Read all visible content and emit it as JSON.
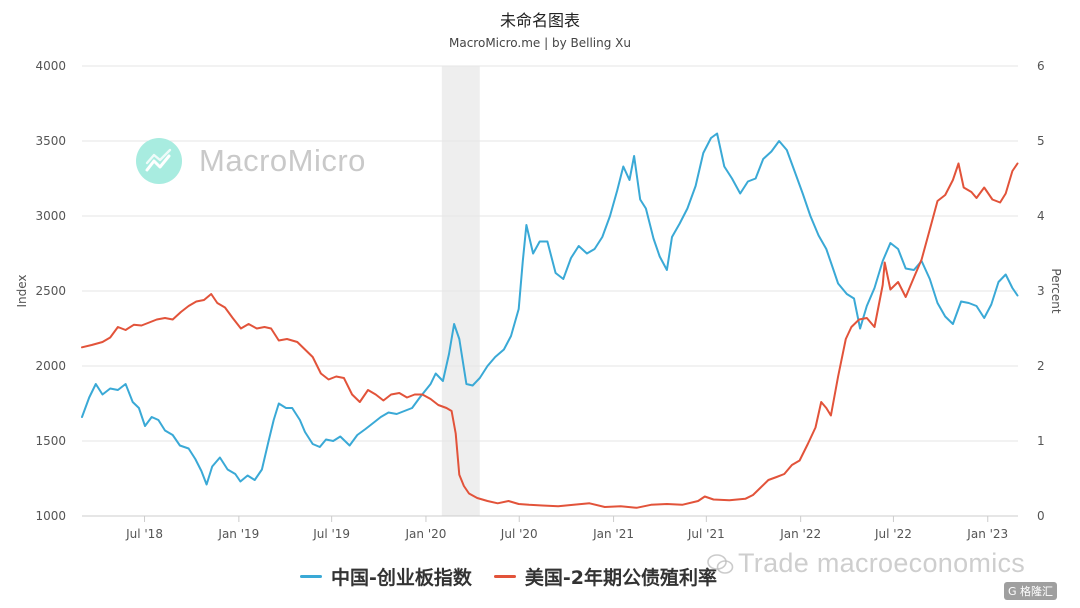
{
  "header": {
    "title": "未命名图表",
    "subtitle": "MacroMicro.me | by Belling Xu"
  },
  "watermark": {
    "text": "MacroMicro",
    "logo_color": "#a8ece0"
  },
  "overlay_watermark": {
    "text": "Trade macroeconomics"
  },
  "brand_badge": {
    "text": "G 格隆汇"
  },
  "legend": [
    {
      "label": "中国-创业板指数",
      "color": "#3aa9d6"
    },
    {
      "label": "美国-2年期公债殖利率",
      "color": "#e2533a"
    }
  ],
  "chart_data": {
    "type": "line",
    "title": "未命名图表",
    "subtitle": "MacroMicro.me | by Belling Xu",
    "ylabel": "Index",
    "y2label": "Percent",
    "ylim": [
      1000,
      4000
    ],
    "y2lim": [
      0,
      6
    ],
    "yticks": [
      "4000",
      "3500",
      "3000",
      "2500",
      "2000",
      "1500",
      "1000"
    ],
    "y2ticks": [
      "6",
      "5",
      "4",
      "3",
      "2",
      "1",
      "0"
    ],
    "xlim": [
      "2018-03-01",
      "2023-03-01"
    ],
    "xticks": [
      {
        "label": "Jul '18",
        "date": "2018-07-01"
      },
      {
        "label": "Jan '19",
        "date": "2019-01-01"
      },
      {
        "label": "Jul '19",
        "date": "2019-07-01"
      },
      {
        "label": "Jan '20",
        "date": "2020-01-01"
      },
      {
        "label": "Jul '20",
        "date": "2020-07-01"
      },
      {
        "label": "Jan '21",
        "date": "2021-01-01"
      },
      {
        "label": "Jul '21",
        "date": "2021-07-01"
      },
      {
        "label": "Jan '22",
        "date": "2022-01-01"
      },
      {
        "label": "Jul '22",
        "date": "2022-07-01"
      },
      {
        "label": "Jan '23",
        "date": "2023-01-01"
      }
    ],
    "shaded_region": {
      "start": "2020-02-01",
      "end": "2020-04-15",
      "color": "#eeeeee"
    },
    "grid": true,
    "legend_position": "bottom",
    "series": [
      {
        "name": "中国-创业板指数",
        "axis": "left",
        "color": "#3aa9d6",
        "points": [
          [
            "2018-03-01",
            1660
          ],
          [
            "2018-03-15",
            1790
          ],
          [
            "2018-03-28",
            1880
          ],
          [
            "2018-04-10",
            1810
          ],
          [
            "2018-04-25",
            1850
          ],
          [
            "2018-05-10",
            1840
          ],
          [
            "2018-05-25",
            1880
          ],
          [
            "2018-06-08",
            1760
          ],
          [
            "2018-06-20",
            1720
          ],
          [
            "2018-07-02",
            1600
          ],
          [
            "2018-07-15",
            1660
          ],
          [
            "2018-07-28",
            1640
          ],
          [
            "2018-08-10",
            1570
          ],
          [
            "2018-08-25",
            1540
          ],
          [
            "2018-09-08",
            1470
          ],
          [
            "2018-09-25",
            1450
          ],
          [
            "2018-10-08",
            1380
          ],
          [
            "2018-10-20",
            1300
          ],
          [
            "2018-10-30",
            1210
          ],
          [
            "2018-11-10",
            1330
          ],
          [
            "2018-11-25",
            1390
          ],
          [
            "2018-12-10",
            1310
          ],
          [
            "2018-12-25",
            1280
          ],
          [
            "2019-01-04",
            1230
          ],
          [
            "2019-01-18",
            1270
          ],
          [
            "2019-02-01",
            1240
          ],
          [
            "2019-02-15",
            1310
          ],
          [
            "2019-02-28",
            1500
          ],
          [
            "2019-03-10",
            1640
          ],
          [
            "2019-03-20",
            1750
          ],
          [
            "2019-04-03",
            1720
          ],
          [
            "2019-04-15",
            1720
          ],
          [
            "2019-04-30",
            1640
          ],
          [
            "2019-05-10",
            1560
          ],
          [
            "2019-05-25",
            1480
          ],
          [
            "2019-06-08",
            1460
          ],
          [
            "2019-06-20",
            1510
          ],
          [
            "2019-07-04",
            1500
          ],
          [
            "2019-07-18",
            1530
          ],
          [
            "2019-08-05",
            1470
          ],
          [
            "2019-08-20",
            1540
          ],
          [
            "2019-09-05",
            1580
          ],
          [
            "2019-09-20",
            1620
          ],
          [
            "2019-10-05",
            1660
          ],
          [
            "2019-10-20",
            1690
          ],
          [
            "2019-11-05",
            1680
          ],
          [
            "2019-11-20",
            1700
          ],
          [
            "2019-12-05",
            1720
          ],
          [
            "2019-12-20",
            1790
          ],
          [
            "2020-01-10",
            1880
          ],
          [
            "2020-01-20",
            1950
          ],
          [
            "2020-02-03",
            1900
          ],
          [
            "2020-02-15",
            2080
          ],
          [
            "2020-02-25",
            2280
          ],
          [
            "2020-03-06",
            2180
          ],
          [
            "2020-03-20",
            1880
          ],
          [
            "2020-04-01",
            1870
          ],
          [
            "2020-04-15",
            1920
          ],
          [
            "2020-04-30",
            2000
          ],
          [
            "2020-05-15",
            2060
          ],
          [
            "2020-06-01",
            2110
          ],
          [
            "2020-06-15",
            2200
          ],
          [
            "2020-06-30",
            2380
          ],
          [
            "2020-07-08",
            2700
          ],
          [
            "2020-07-15",
            2940
          ],
          [
            "2020-07-28",
            2750
          ],
          [
            "2020-08-10",
            2830
          ],
          [
            "2020-08-25",
            2830
          ],
          [
            "2020-09-10",
            2620
          ],
          [
            "2020-09-25",
            2580
          ],
          [
            "2020-10-10",
            2720
          ],
          [
            "2020-10-25",
            2800
          ],
          [
            "2020-11-10",
            2750
          ],
          [
            "2020-11-25",
            2780
          ],
          [
            "2020-12-10",
            2860
          ],
          [
            "2020-12-25",
            3000
          ],
          [
            "2021-01-08",
            3170
          ],
          [
            "2021-01-20",
            3330
          ],
          [
            "2021-02-01",
            3240
          ],
          [
            "2021-02-10",
            3400
          ],
          [
            "2021-02-22",
            3110
          ],
          [
            "2021-03-05",
            3050
          ],
          [
            "2021-03-20",
            2850
          ],
          [
            "2021-04-01",
            2730
          ],
          [
            "2021-04-15",
            2640
          ],
          [
            "2021-04-25",
            2860
          ],
          [
            "2021-05-10",
            2950
          ],
          [
            "2021-05-25",
            3050
          ],
          [
            "2021-06-10",
            3200
          ],
          [
            "2021-06-25",
            3420
          ],
          [
            "2021-07-10",
            3520
          ],
          [
            "2021-07-22",
            3550
          ],
          [
            "2021-08-05",
            3330
          ],
          [
            "2021-08-20",
            3250
          ],
          [
            "2021-09-05",
            3150
          ],
          [
            "2021-09-20",
            3230
          ],
          [
            "2021-10-05",
            3250
          ],
          [
            "2021-10-20",
            3380
          ],
          [
            "2021-11-05",
            3430
          ],
          [
            "2021-11-20",
            3500
          ],
          [
            "2021-12-05",
            3440
          ],
          [
            "2021-12-20",
            3300
          ],
          [
            "2022-01-05",
            3150
          ],
          [
            "2022-01-20",
            3000
          ],
          [
            "2022-02-05",
            2870
          ],
          [
            "2022-02-20",
            2780
          ],
          [
            "2022-03-05",
            2650
          ],
          [
            "2022-03-15",
            2550
          ],
          [
            "2022-04-01",
            2480
          ],
          [
            "2022-04-15",
            2450
          ],
          [
            "2022-04-27",
            2250
          ],
          [
            "2022-05-10",
            2400
          ],
          [
            "2022-05-25",
            2520
          ],
          [
            "2022-06-10",
            2700
          ],
          [
            "2022-06-25",
            2820
          ],
          [
            "2022-07-10",
            2780
          ],
          [
            "2022-07-25",
            2650
          ],
          [
            "2022-08-10",
            2640
          ],
          [
            "2022-08-25",
            2700
          ],
          [
            "2022-09-10",
            2580
          ],
          [
            "2022-09-25",
            2420
          ],
          [
            "2022-10-10",
            2330
          ],
          [
            "2022-10-25",
            2280
          ],
          [
            "2022-11-10",
            2430
          ],
          [
            "2022-11-25",
            2420
          ],
          [
            "2022-12-10",
            2400
          ],
          [
            "2022-12-25",
            2320
          ],
          [
            "2023-01-08",
            2410
          ],
          [
            "2023-01-22",
            2560
          ],
          [
            "2023-02-05",
            2610
          ],
          [
            "2023-02-18",
            2520
          ],
          [
            "2023-02-28",
            2470
          ]
        ]
      },
      {
        "name": "美国-2年期公债殖利率",
        "axis": "right",
        "color": "#e2533a",
        "points": [
          [
            "2018-03-01",
            2.25
          ],
          [
            "2018-03-20",
            2.28
          ],
          [
            "2018-04-10",
            2.32
          ],
          [
            "2018-04-25",
            2.38
          ],
          [
            "2018-05-10",
            2.52
          ],
          [
            "2018-05-25",
            2.48
          ],
          [
            "2018-06-10",
            2.55
          ],
          [
            "2018-06-25",
            2.54
          ],
          [
            "2018-07-10",
            2.58
          ],
          [
            "2018-07-25",
            2.62
          ],
          [
            "2018-08-10",
            2.64
          ],
          [
            "2018-08-25",
            2.62
          ],
          [
            "2018-09-10",
            2.72
          ],
          [
            "2018-09-25",
            2.8
          ],
          [
            "2018-10-10",
            2.86
          ],
          [
            "2018-10-25",
            2.88
          ],
          [
            "2018-11-08",
            2.96
          ],
          [
            "2018-11-20",
            2.84
          ],
          [
            "2018-12-05",
            2.78
          ],
          [
            "2018-12-20",
            2.64
          ],
          [
            "2019-01-05",
            2.5
          ],
          [
            "2019-01-20",
            2.56
          ],
          [
            "2019-02-05",
            2.5
          ],
          [
            "2019-02-20",
            2.52
          ],
          [
            "2019-03-05",
            2.5
          ],
          [
            "2019-03-20",
            2.34
          ],
          [
            "2019-04-05",
            2.36
          ],
          [
            "2019-04-25",
            2.32
          ],
          [
            "2019-05-10",
            2.22
          ],
          [
            "2019-05-25",
            2.12
          ],
          [
            "2019-06-10",
            1.9
          ],
          [
            "2019-06-25",
            1.82
          ],
          [
            "2019-07-10",
            1.86
          ],
          [
            "2019-07-25",
            1.84
          ],
          [
            "2019-08-10",
            1.62
          ],
          [
            "2019-08-25",
            1.52
          ],
          [
            "2019-09-10",
            1.68
          ],
          [
            "2019-09-25",
            1.62
          ],
          [
            "2019-10-10",
            1.54
          ],
          [
            "2019-10-25",
            1.62
          ],
          [
            "2019-11-10",
            1.64
          ],
          [
            "2019-11-25",
            1.58
          ],
          [
            "2019-12-10",
            1.62
          ],
          [
            "2019-12-25",
            1.62
          ],
          [
            "2020-01-10",
            1.56
          ],
          [
            "2020-01-25",
            1.48
          ],
          [
            "2020-02-10",
            1.44
          ],
          [
            "2020-02-20",
            1.4
          ],
          [
            "2020-02-28",
            1.1
          ],
          [
            "2020-03-06",
            0.55
          ],
          [
            "2020-03-15",
            0.4
          ],
          [
            "2020-03-25",
            0.3
          ],
          [
            "2020-04-10",
            0.24
          ],
          [
            "2020-04-30",
            0.2
          ],
          [
            "2020-05-20",
            0.17
          ],
          [
            "2020-06-10",
            0.2
          ],
          [
            "2020-06-30",
            0.16
          ],
          [
            "2020-07-20",
            0.15
          ],
          [
            "2020-08-15",
            0.14
          ],
          [
            "2020-09-15",
            0.13
          ],
          [
            "2020-10-15",
            0.15
          ],
          [
            "2020-11-15",
            0.17
          ],
          [
            "2020-12-15",
            0.12
          ],
          [
            "2021-01-15",
            0.13
          ],
          [
            "2021-02-15",
            0.11
          ],
          [
            "2021-03-15",
            0.15
          ],
          [
            "2021-04-15",
            0.16
          ],
          [
            "2021-05-15",
            0.15
          ],
          [
            "2021-06-15",
            0.2
          ],
          [
            "2021-06-28",
            0.26
          ],
          [
            "2021-07-15",
            0.22
          ],
          [
            "2021-08-15",
            0.21
          ],
          [
            "2021-09-15",
            0.23
          ],
          [
            "2021-09-30",
            0.28
          ],
          [
            "2021-10-15",
            0.38
          ],
          [
            "2021-10-30",
            0.48
          ],
          [
            "2021-11-15",
            0.52
          ],
          [
            "2021-11-30",
            0.56
          ],
          [
            "2021-12-15",
            0.68
          ],
          [
            "2021-12-30",
            0.74
          ],
          [
            "2022-01-15",
            0.96
          ],
          [
            "2022-01-30",
            1.18
          ],
          [
            "2022-02-10",
            1.52
          ],
          [
            "2022-02-20",
            1.44
          ],
          [
            "2022-03-01",
            1.34
          ],
          [
            "2022-03-15",
            1.86
          ],
          [
            "2022-03-30",
            2.36
          ],
          [
            "2022-04-10",
            2.52
          ],
          [
            "2022-04-25",
            2.62
          ],
          [
            "2022-05-10",
            2.64
          ],
          [
            "2022-05-25",
            2.52
          ],
          [
            "2022-06-10",
            3.08
          ],
          [
            "2022-06-14",
            3.38
          ],
          [
            "2022-06-25",
            3.02
          ],
          [
            "2022-07-10",
            3.12
          ],
          [
            "2022-07-25",
            2.92
          ],
          [
            "2022-08-10",
            3.18
          ],
          [
            "2022-08-25",
            3.42
          ],
          [
            "2022-09-10",
            3.82
          ],
          [
            "2022-09-25",
            4.2
          ],
          [
            "2022-10-10",
            4.28
          ],
          [
            "2022-10-25",
            4.48
          ],
          [
            "2022-11-05",
            4.7
          ],
          [
            "2022-11-15",
            4.38
          ],
          [
            "2022-11-30",
            4.32
          ],
          [
            "2022-12-10",
            4.24
          ],
          [
            "2022-12-25",
            4.38
          ],
          [
            "2023-01-10",
            4.22
          ],
          [
            "2023-01-25",
            4.18
          ],
          [
            "2023-02-05",
            4.3
          ],
          [
            "2023-02-18",
            4.6
          ],
          [
            "2023-02-28",
            4.7
          ]
        ]
      }
    ]
  }
}
